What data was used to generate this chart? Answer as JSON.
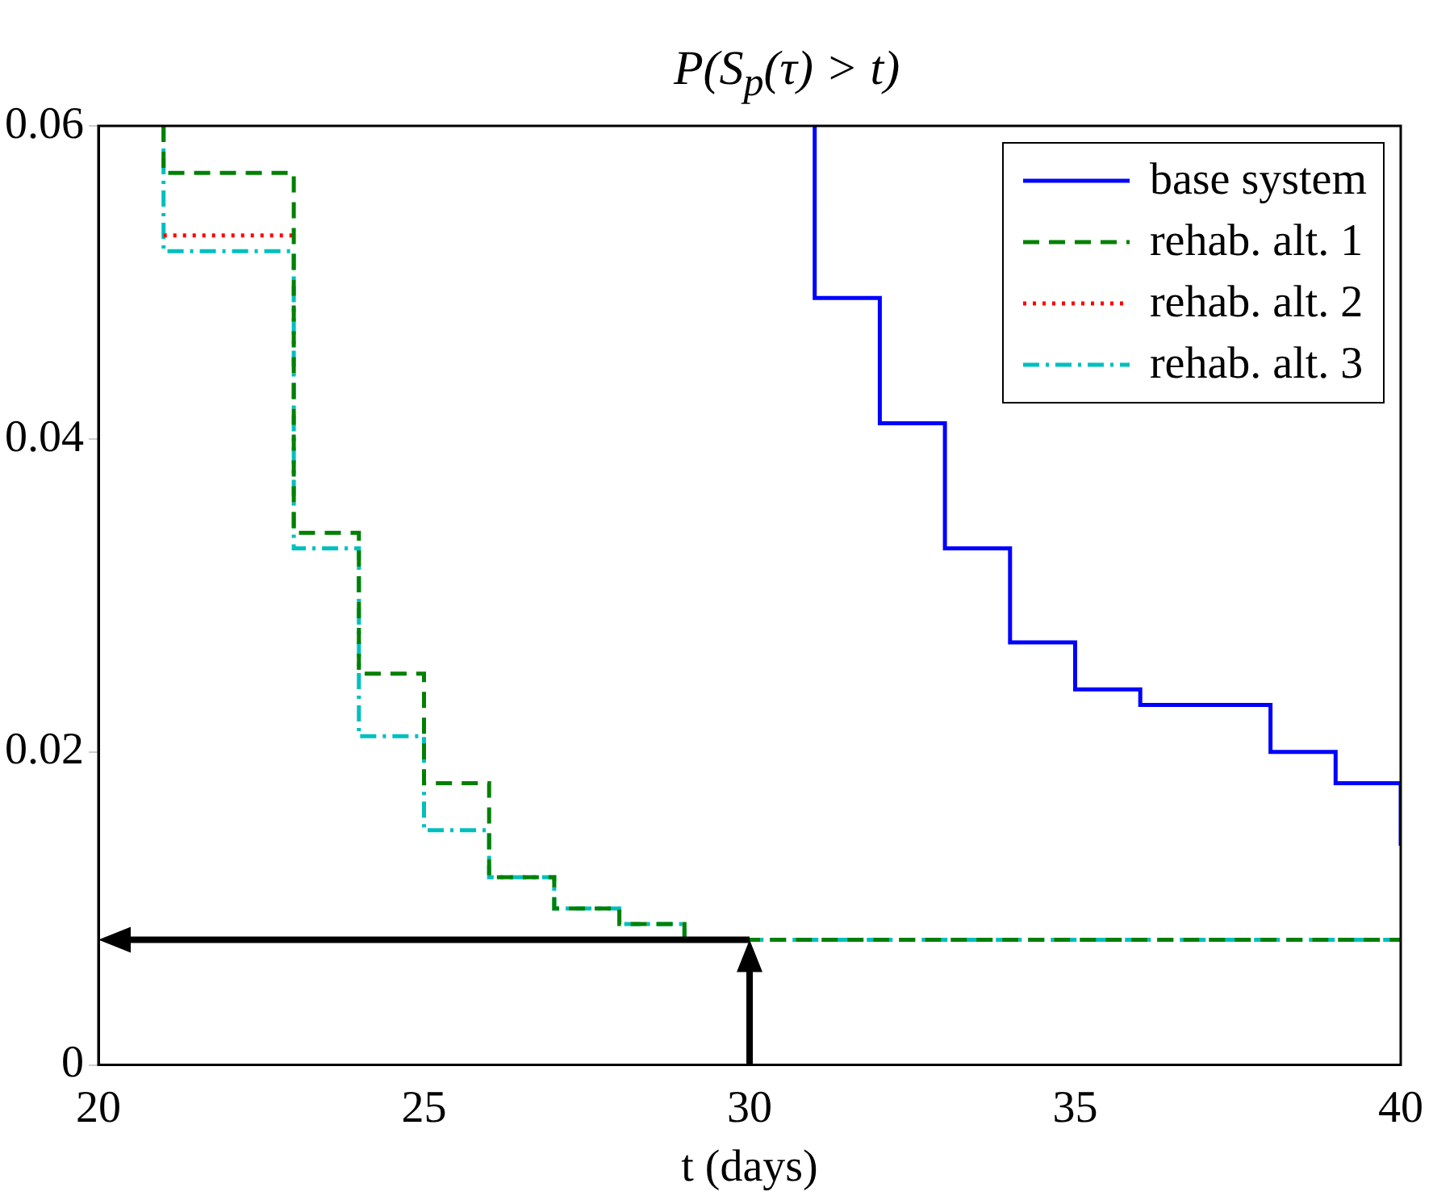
{
  "chart_data": {
    "type": "step",
    "title": "P(S$_{p}$(τ) > t)",
    "xlabel": "t (days)",
    "xlim": [
      20,
      40
    ],
    "xticks": [
      20,
      25,
      30,
      35,
      40
    ],
    "ylim": [
      0,
      0.06
    ],
    "yticks": [
      0,
      0.02,
      0.04,
      0.06
    ],
    "grid": false,
    "legend": "top right",
    "marker": "none",
    "series": [
      {
        "name": "base system",
        "color": "#0000ff",
        "line_style": "solid",
        "x": [
          31,
          31,
          32,
          33,
          34,
          35,
          36,
          38,
          39,
          40
        ],
        "values": [
          0.06,
          0.049,
          0.041,
          0.033,
          0.027,
          0.024,
          0.023,
          0.02,
          0.018,
          0.014
        ]
      },
      {
        "name": "rehab. alt. 1",
        "color": "#008000",
        "line_style": "dashed",
        "x": [
          21,
          21,
          23,
          24,
          25,
          26,
          27,
          28,
          29,
          40
        ],
        "values": [
          0.06,
          0.057,
          0.034,
          0.025,
          0.018,
          0.012,
          0.01,
          0.009,
          0.008,
          0.008
        ]
      },
      {
        "name": "rehab. alt. 2",
        "color": "#ff0000",
        "line_style": "dotted",
        "x": [
          21,
          23
        ],
        "values": [
          0.053,
          0.053
        ]
      },
      {
        "name": "rehab. alt. 3",
        "color": "#00bfbf",
        "line_style": "dashdot",
        "x": [
          21,
          21,
          23,
          24,
          25,
          26,
          27,
          28,
          29,
          40
        ],
        "values": [
          0.06,
          0.052,
          0.033,
          0.021,
          0.015,
          0.012,
          0.01,
          0.009,
          0.008,
          0.008
        ]
      }
    ],
    "ref_lines": [
      {
        "axis": "x",
        "value": 30,
        "color": "#000000"
      },
      {
        "axis": "y",
        "value": 0.008,
        "color": "#000000"
      }
    ]
  }
}
